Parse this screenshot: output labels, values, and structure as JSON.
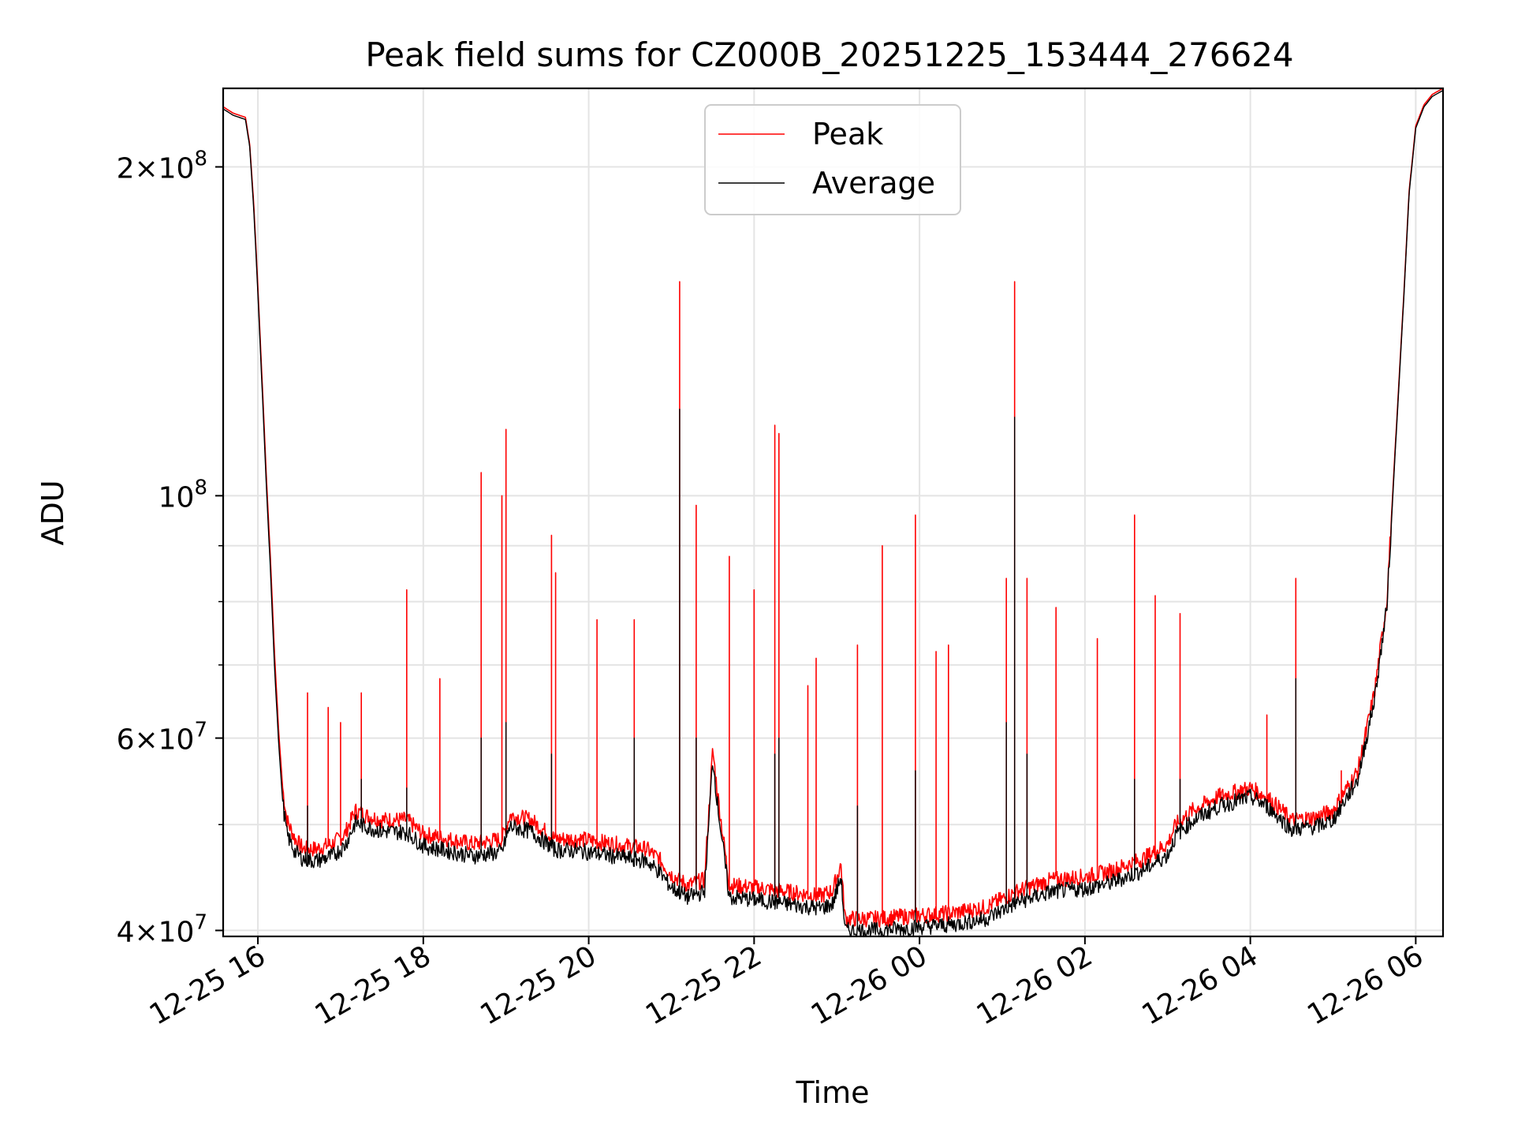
{
  "chart_data": {
    "type": "line",
    "title": "Peak field sums for CZ000B_20251225_153444_276624",
    "xlabel": "Time",
    "ylabel": "ADU",
    "yscale": "log",
    "xlim_hours": [
      15.58,
      30.33
    ],
    "ylim": [
      39500000,
      236000000
    ],
    "grid": true,
    "legend_placement": "upper center",
    "x_ticks": [
      {
        "hour": 16,
        "label": "12-25 16"
      },
      {
        "hour": 18,
        "label": "12-25 18"
      },
      {
        "hour": 20,
        "label": "12-25 20"
      },
      {
        "hour": 22,
        "label": "12-25 22"
      },
      {
        "hour": 24,
        "label": "12-26 00"
      },
      {
        "hour": 26,
        "label": "12-26 02"
      },
      {
        "hour": 28,
        "label": "12-26 04"
      },
      {
        "hour": 30,
        "label": "12-26 06"
      }
    ],
    "y_major_ticks": [
      {
        "value": 40000000,
        "mantissa": "4",
        "exponent": "7"
      },
      {
        "value": 60000000,
        "mantissa": "6",
        "exponent": "7"
      },
      {
        "value": 100000000,
        "mantissa": "",
        "exponent": "8"
      },
      {
        "value": 200000000,
        "mantissa": "2",
        "exponent": "8"
      }
    ],
    "y_minor_gridlines": [
      50000000,
      70000000,
      80000000,
      90000000
    ],
    "series": [
      {
        "name": "Peak",
        "color": "#ff0000",
        "hours": [
          15.58,
          15.7,
          15.85,
          15.9,
          15.95,
          16.0,
          16.05,
          16.1,
          16.15,
          16.2,
          16.25,
          16.3,
          16.35,
          16.45,
          16.55,
          16.7,
          16.9,
          17.05,
          17.18,
          17.3,
          17.5,
          17.8,
          18.0,
          18.3,
          18.6,
          18.95,
          19.05,
          19.3,
          19.6,
          19.9,
          20.3,
          20.7,
          20.85,
          21.0,
          21.2,
          21.4,
          21.5,
          21.55,
          21.7,
          22.0,
          22.3,
          22.6,
          22.8,
          22.95,
          23.05,
          23.1,
          23.5,
          24.0,
          24.4,
          24.8,
          25.2,
          25.6,
          26.0,
          26.3,
          26.7,
          27.0,
          27.1,
          27.3,
          27.6,
          28.0,
          28.2,
          28.5,
          28.8,
          29.0,
          29.3,
          29.5,
          29.65,
          29.75,
          29.85,
          29.92,
          30.0,
          30.1,
          30.2,
          30.33
        ],
        "values": [
          227000000,
          224000000,
          222000000,
          210000000,
          185000000,
          155000000,
          128000000,
          105000000,
          88000000,
          72000000,
          61000000,
          54000000,
          50500000,
          48500000,
          47500000,
          47500000,
          48000000,
          49000000,
          51500000,
          51000000,
          50500000,
          50500000,
          49000000,
          48500000,
          48000000,
          48500000,
          51000000,
          50500000,
          48500000,
          48500000,
          48000000,
          47500000,
          46500000,
          45000000,
          44000000,
          44500000,
          58500000,
          54000000,
          44000000,
          43800000,
          43500000,
          43200000,
          43000000,
          43500000,
          46000000,
          41000000,
          41000000,
          41300000,
          41500000,
          42000000,
          43500000,
          44500000,
          44800000,
          45300000,
          46500000,
          48000000,
          50000000,
          51500000,
          53000000,
          54000000,
          53000000,
          50500000,
          50800000,
          51500000,
          56000000,
          66000000,
          80000000,
          110000000,
          150000000,
          190000000,
          218000000,
          228000000,
          233000000,
          236000000
        ],
        "spikes": [
          [
            16.6,
            66000000
          ],
          [
            16.85,
            64000000
          ],
          [
            17.0,
            62000000
          ],
          [
            17.25,
            66000000
          ],
          [
            17.8,
            82000000
          ],
          [
            18.2,
            68000000
          ],
          [
            18.7,
            105000000
          ],
          [
            18.95,
            100000000
          ],
          [
            19.0,
            115000000
          ],
          [
            19.55,
            92000000
          ],
          [
            19.6,
            85000000
          ],
          [
            20.1,
            77000000
          ],
          [
            20.55,
            77000000
          ],
          [
            21.1,
            157000000
          ],
          [
            21.3,
            98000000
          ],
          [
            21.7,
            88000000
          ],
          [
            22.0,
            82000000
          ],
          [
            22.25,
            116000000
          ],
          [
            22.3,
            114000000
          ],
          [
            22.65,
            67000000
          ],
          [
            22.75,
            71000000
          ],
          [
            23.25,
            73000000
          ],
          [
            23.55,
            90000000
          ],
          [
            23.95,
            96000000
          ],
          [
            24.2,
            72000000
          ],
          [
            24.35,
            73000000
          ],
          [
            25.05,
            84000000
          ],
          [
            25.15,
            157000000
          ],
          [
            25.3,
            84000000
          ],
          [
            25.65,
            79000000
          ],
          [
            26.15,
            74000000
          ],
          [
            26.6,
            96000000
          ],
          [
            26.85,
            81000000
          ],
          [
            27.15,
            78000000
          ],
          [
            28.2,
            63000000
          ],
          [
            28.55,
            84000000
          ],
          [
            29.1,
            56000000
          ],
          [
            29.4,
            60000000
          ]
        ]
      },
      {
        "name": "Average",
        "color": "#000000",
        "hours": [
          15.58,
          15.7,
          15.85,
          15.9,
          15.95,
          16.0,
          16.05,
          16.1,
          16.15,
          16.2,
          16.25,
          16.3,
          16.35,
          16.45,
          16.55,
          16.7,
          16.9,
          17.05,
          17.18,
          17.3,
          17.5,
          17.8,
          18.0,
          18.3,
          18.6,
          18.95,
          19.05,
          19.3,
          19.6,
          19.9,
          20.3,
          20.7,
          20.85,
          21.0,
          21.2,
          21.4,
          21.5,
          21.55,
          21.7,
          22.0,
          22.3,
          22.6,
          22.8,
          22.95,
          23.05,
          23.1,
          23.5,
          24.0,
          24.4,
          24.8,
          25.2,
          25.6,
          26.0,
          26.3,
          26.7,
          27.0,
          27.1,
          27.3,
          27.6,
          28.0,
          28.2,
          28.5,
          28.8,
          29.0,
          29.3,
          29.5,
          29.65,
          29.75,
          29.85,
          29.92,
          30.0,
          30.1,
          30.2,
          30.33
        ],
        "values": [
          226000000,
          223000000,
          221000000,
          209000000,
          183000000,
          153000000,
          126000000,
          103000000,
          86000000,
          70000000,
          59500000,
          52500000,
          49000000,
          47200000,
          46500000,
          46300000,
          46800000,
          47800000,
          50200000,
          49800000,
          49300000,
          49200000,
          47800000,
          47300000,
          46800000,
          47200000,
          49800000,
          49300000,
          47400000,
          47300000,
          46800000,
          46300000,
          45300000,
          43800000,
          42900000,
          43400000,
          57500000,
          52800000,
          42900000,
          42700000,
          42400000,
          42100000,
          41900000,
          42300000,
          44800000,
          40000000,
          40000000,
          40300000,
          40500000,
          41000000,
          42500000,
          43400000,
          43700000,
          44200000,
          45400000,
          46900000,
          48900000,
          50400000,
          51900000,
          53000000,
          52000000,
          49500000,
          49800000,
          50500000,
          55000000,
          65000000,
          79000000,
          109000000,
          149000000,
          189000000,
          217000000,
          227000000,
          232000000,
          235000000
        ],
        "spikes": [
          [
            16.6,
            52000000
          ],
          [
            17.25,
            55000000
          ],
          [
            17.8,
            54000000
          ],
          [
            18.7,
            60000000
          ],
          [
            19.0,
            62000000
          ],
          [
            19.55,
            58000000
          ],
          [
            20.55,
            60000000
          ],
          [
            21.1,
            120000000
          ],
          [
            21.3,
            60000000
          ],
          [
            22.25,
            58000000
          ],
          [
            22.3,
            60000000
          ],
          [
            23.25,
            52000000
          ],
          [
            23.95,
            56000000
          ],
          [
            25.05,
            62000000
          ],
          [
            25.15,
            118000000
          ],
          [
            25.3,
            58000000
          ],
          [
            26.6,
            55000000
          ],
          [
            27.15,
            55000000
          ],
          [
            28.55,
            68000000
          ]
        ]
      }
    ]
  }
}
